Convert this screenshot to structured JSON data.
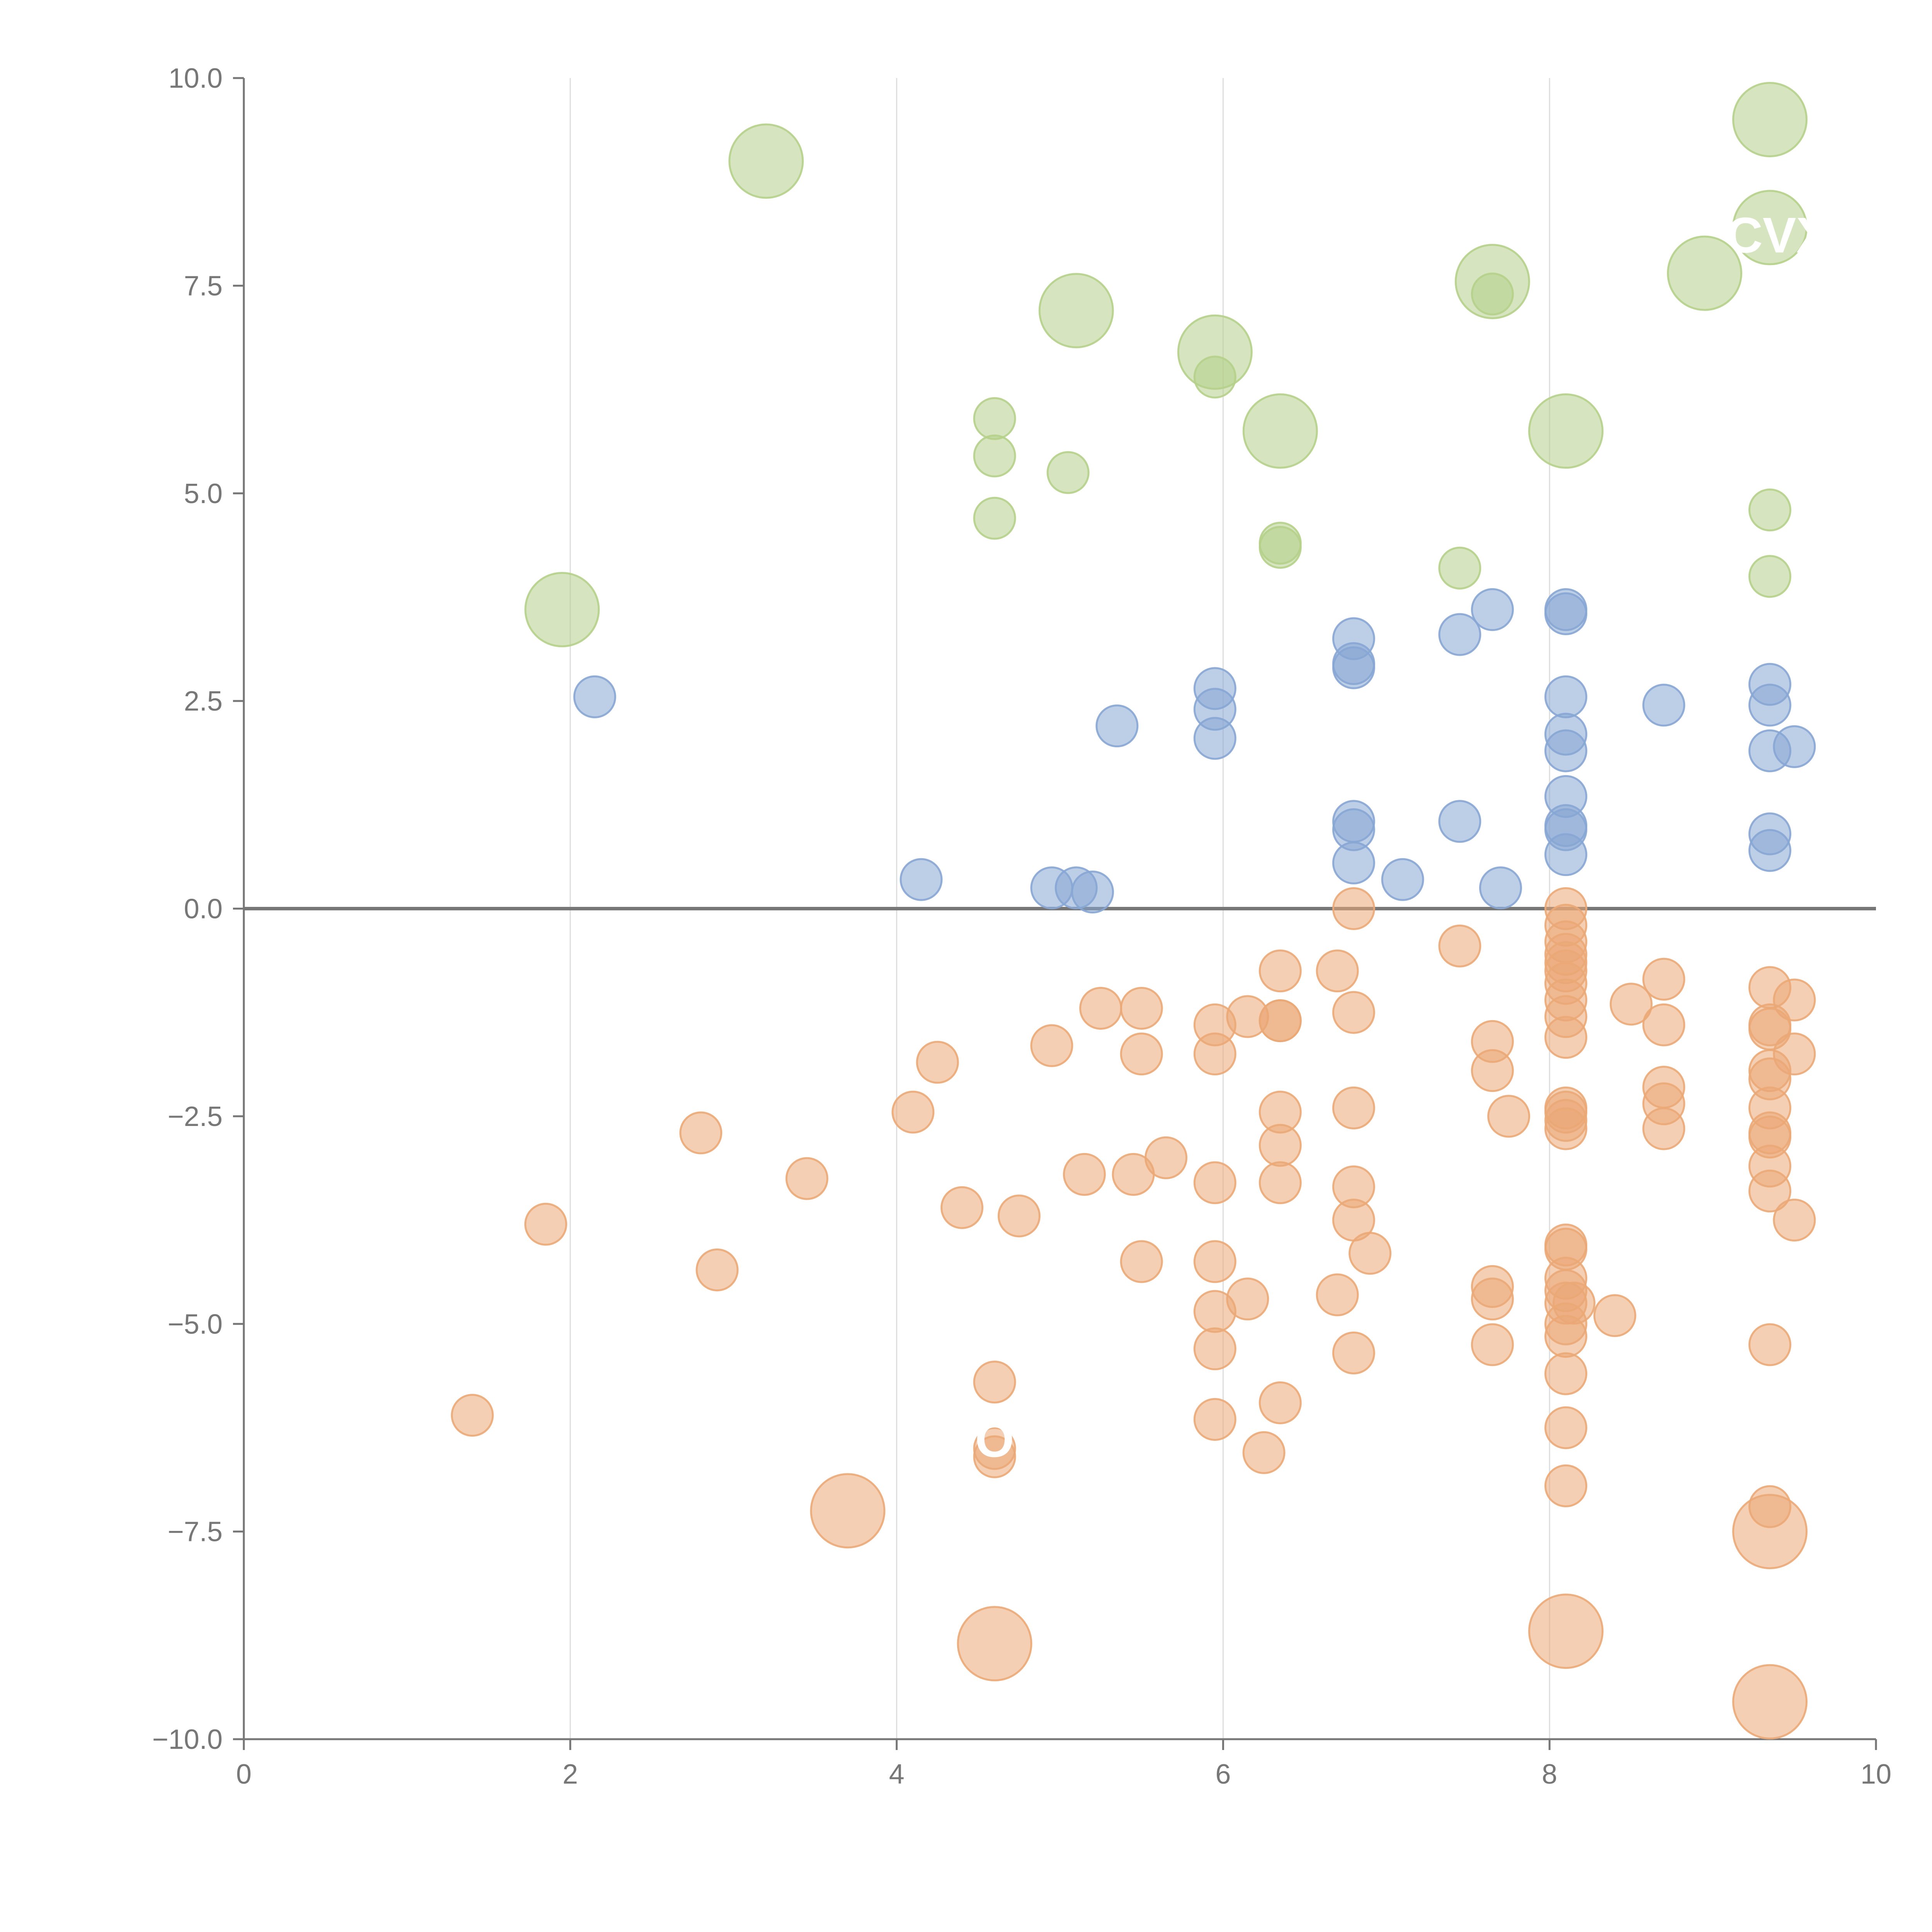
{
  "chart_data": {
    "type": "scatter",
    "title": "",
    "xlabel": "",
    "ylabel": "",
    "xlim": [
      0,
      10
    ],
    "ylim": [
      -10,
      10
    ],
    "x_ticks": [
      "0",
      "2",
      "4",
      "6",
      "8",
      "10"
    ],
    "y_ticks": [
      "10.0",
      "7.5",
      "5.0",
      "2.5",
      "0.0",
      "−2.5",
      "−5.0",
      "−7.5",
      "−10.0"
    ],
    "colors": {
      "green": "#b5d08a",
      "blue": "#87a6d4",
      "orange": "#eba877",
      "axis": "#777777",
      "grid": "#dddddd"
    },
    "annotations": [
      {
        "text": "CVX",
        "x": 9.4,
        "y": 7.9
      },
      {
        "text": "O",
        "x": 4.6,
        "y": -6.6
      }
    ],
    "series": [
      {
        "name": "green",
        "color": "#b5d08a",
        "points": [
          [
            9.35,
            9.5,
            3
          ],
          [
            3.2,
            9.0,
            3
          ],
          [
            9.35,
            8.2,
            3
          ],
          [
            7.65,
            7.55,
            3
          ],
          [
            8.95,
            7.65,
            3
          ],
          [
            7.65,
            7.4,
            1
          ],
          [
            5.1,
            7.2,
            3
          ],
          [
            5.95,
            6.7,
            3
          ],
          [
            5.95,
            6.4,
            1
          ],
          [
            4.6,
            5.9,
            1
          ],
          [
            6.35,
            5.75,
            3
          ],
          [
            8.1,
            5.75,
            3
          ],
          [
            4.6,
            5.45,
            1
          ],
          [
            5.05,
            5.25,
            1
          ],
          [
            4.6,
            4.7,
            1
          ],
          [
            9.35,
            4.8,
            1
          ],
          [
            6.35,
            4.4,
            1
          ],
          [
            6.35,
            4.35,
            1
          ],
          [
            7.45,
            4.1,
            1
          ],
          [
            9.35,
            4.0,
            1
          ],
          [
            1.95,
            3.6,
            3
          ]
        ]
      },
      {
        "name": "blue",
        "color": "#87a6d4",
        "points": [
          [
            7.65,
            3.6,
            1
          ],
          [
            8.1,
            3.6,
            1
          ],
          [
            8.1,
            3.55,
            1
          ],
          [
            6.8,
            3.25,
            1
          ],
          [
            7.45,
            3.3,
            1
          ],
          [
            6.8,
            2.95,
            1
          ],
          [
            6.8,
            2.9,
            1
          ],
          [
            5.95,
            2.65,
            1
          ],
          [
            8.1,
            2.55,
            1
          ],
          [
            2.15,
            2.55,
            1
          ],
          [
            5.95,
            2.4,
            1
          ],
          [
            8.7,
            2.45,
            1
          ],
          [
            9.35,
            2.7,
            1
          ],
          [
            9.35,
            2.45,
            1
          ],
          [
            5.35,
            2.2,
            1
          ],
          [
            8.1,
            2.1,
            1
          ],
          [
            5.95,
            2.05,
            1
          ],
          [
            8.1,
            1.9,
            1
          ],
          [
            9.35,
            1.9,
            1
          ],
          [
            9.5,
            1.95,
            1
          ],
          [
            8.1,
            1.35,
            1
          ],
          [
            6.8,
            1.05,
            1
          ],
          [
            7.45,
            1.05,
            1
          ],
          [
            8.1,
            1.0,
            1
          ],
          [
            8.1,
            0.95,
            1
          ],
          [
            6.8,
            0.95,
            1
          ],
          [
            9.35,
            0.9,
            1
          ],
          [
            9.35,
            0.7,
            1
          ],
          [
            8.1,
            0.65,
            1
          ],
          [
            6.8,
            0.55,
            1
          ],
          [
            4.15,
            0.35,
            1
          ],
          [
            7.1,
            0.35,
            1
          ],
          [
            4.95,
            0.25,
            1
          ],
          [
            5.1,
            0.25,
            1
          ],
          [
            5.2,
            0.2,
            1
          ],
          [
            7.7,
            0.25,
            1
          ]
        ]
      },
      {
        "name": "orange",
        "color": "#eba877",
        "points": [
          [
            6.8,
            0.0,
            1
          ],
          [
            8.1,
            0.0,
            1
          ],
          [
            8.1,
            -0.2,
            1
          ],
          [
            8.1,
            -0.4,
            1
          ],
          [
            7.45,
            -0.45,
            1
          ],
          [
            8.1,
            -0.55,
            1
          ],
          [
            8.1,
            -0.65,
            1
          ],
          [
            8.1,
            -0.75,
            1
          ],
          [
            6.7,
            -0.75,
            1
          ],
          [
            6.35,
            -0.75,
            1
          ],
          [
            8.1,
            -0.9,
            1
          ],
          [
            8.7,
            -0.85,
            1
          ],
          [
            9.35,
            -0.95,
            1
          ],
          [
            9.5,
            -1.1,
            1
          ],
          [
            8.5,
            -1.15,
            1
          ],
          [
            8.1,
            -1.1,
            1
          ],
          [
            5.25,
            -1.2,
            1
          ],
          [
            5.5,
            -1.2,
            1
          ],
          [
            6.8,
            -1.25,
            1
          ],
          [
            6.15,
            -1.3,
            1
          ],
          [
            6.35,
            -1.35,
            1
          ],
          [
            6.35,
            -1.35,
            1
          ],
          [
            8.1,
            -1.3,
            1
          ],
          [
            8.7,
            -1.4,
            1
          ],
          [
            5.95,
            -1.4,
            1
          ],
          [
            9.35,
            -1.4,
            1
          ],
          [
            9.35,
            -1.45,
            1
          ],
          [
            8.1,
            -1.55,
            1
          ],
          [
            7.65,
            -1.6,
            1
          ],
          [
            4.95,
            -1.65,
            1
          ],
          [
            5.5,
            -1.75,
            1
          ],
          [
            5.95,
            -1.75,
            1
          ],
          [
            9.5,
            -1.75,
            1
          ],
          [
            4.25,
            -1.85,
            1
          ],
          [
            7.65,
            -1.95,
            1
          ],
          [
            9.35,
            -1.95,
            1
          ],
          [
            9.35,
            -2.05,
            1
          ],
          [
            8.7,
            -2.15,
            1
          ],
          [
            8.7,
            -2.35,
            1
          ],
          [
            6.8,
            -2.4,
            1
          ],
          [
            8.1,
            -2.4,
            1
          ],
          [
            9.35,
            -2.4,
            1
          ],
          [
            4.1,
            -2.45,
            1
          ],
          [
            6.35,
            -2.45,
            1
          ],
          [
            8.1,
            -2.45,
            1
          ],
          [
            7.75,
            -2.5,
            1
          ],
          [
            8.1,
            -2.55,
            1
          ],
          [
            8.1,
            -2.65,
            1
          ],
          [
            8.7,
            -2.65,
            1
          ],
          [
            9.35,
            -2.7,
            1
          ],
          [
            2.8,
            -2.7,
            1
          ],
          [
            9.35,
            -2.75,
            1
          ],
          [
            6.35,
            -2.85,
            1
          ],
          [
            5.65,
            -3.0,
            1
          ],
          [
            9.35,
            -3.1,
            1
          ],
          [
            5.15,
            -3.2,
            1
          ],
          [
            5.45,
            -3.2,
            1
          ],
          [
            3.45,
            -3.25,
            1
          ],
          [
            5.95,
            -3.3,
            1
          ],
          [
            6.35,
            -3.3,
            1
          ],
          [
            6.8,
            -3.35,
            1
          ],
          [
            9.35,
            -3.4,
            1
          ],
          [
            4.4,
            -3.6,
            1
          ],
          [
            4.75,
            -3.7,
            1
          ],
          [
            6.8,
            -3.75,
            1
          ],
          [
            9.5,
            -3.75,
            1
          ],
          [
            1.85,
            -3.8,
            1
          ],
          [
            8.1,
            -4.05,
            1
          ],
          [
            8.1,
            -4.1,
            1
          ],
          [
            6.9,
            -4.15,
            1
          ],
          [
            5.5,
            -4.25,
            1
          ],
          [
            5.95,
            -4.25,
            1
          ],
          [
            2.9,
            -4.35,
            1
          ],
          [
            8.1,
            -4.45,
            1
          ],
          [
            7.65,
            -4.55,
            1
          ],
          [
            8.1,
            -4.6,
            1
          ],
          [
            6.7,
            -4.65,
            1
          ],
          [
            6.15,
            -4.7,
            1
          ],
          [
            7.65,
            -4.7,
            1
          ],
          [
            8.1,
            -4.75,
            1
          ],
          [
            8.15,
            -4.75,
            1
          ],
          [
            5.95,
            -4.85,
            1
          ],
          [
            8.4,
            -4.9,
            1
          ],
          [
            8.1,
            -5.0,
            1
          ],
          [
            8.1,
            -5.15,
            1
          ],
          [
            7.65,
            -5.25,
            1
          ],
          [
            9.35,
            -5.25,
            1
          ],
          [
            5.95,
            -5.3,
            1
          ],
          [
            6.8,
            -5.35,
            1
          ],
          [
            8.1,
            -5.6,
            1
          ],
          [
            4.6,
            -5.7,
            1
          ],
          [
            6.35,
            -5.95,
            1
          ],
          [
            1.4,
            -6.1,
            1
          ],
          [
            5.95,
            -6.15,
            1
          ],
          [
            8.1,
            -6.25,
            1
          ],
          [
            4.6,
            -6.5,
            1
          ],
          [
            4.6,
            -6.6,
            1
          ],
          [
            6.25,
            -6.55,
            1
          ],
          [
            8.1,
            -6.95,
            1
          ],
          [
            9.35,
            -7.2,
            1
          ],
          [
            3.7,
            -7.25,
            3
          ],
          [
            9.35,
            -7.5,
            3
          ],
          [
            8.1,
            -8.7,
            3
          ],
          [
            4.6,
            -8.85,
            3
          ],
          [
            9.35,
            -9.55,
            3
          ]
        ]
      }
    ]
  }
}
